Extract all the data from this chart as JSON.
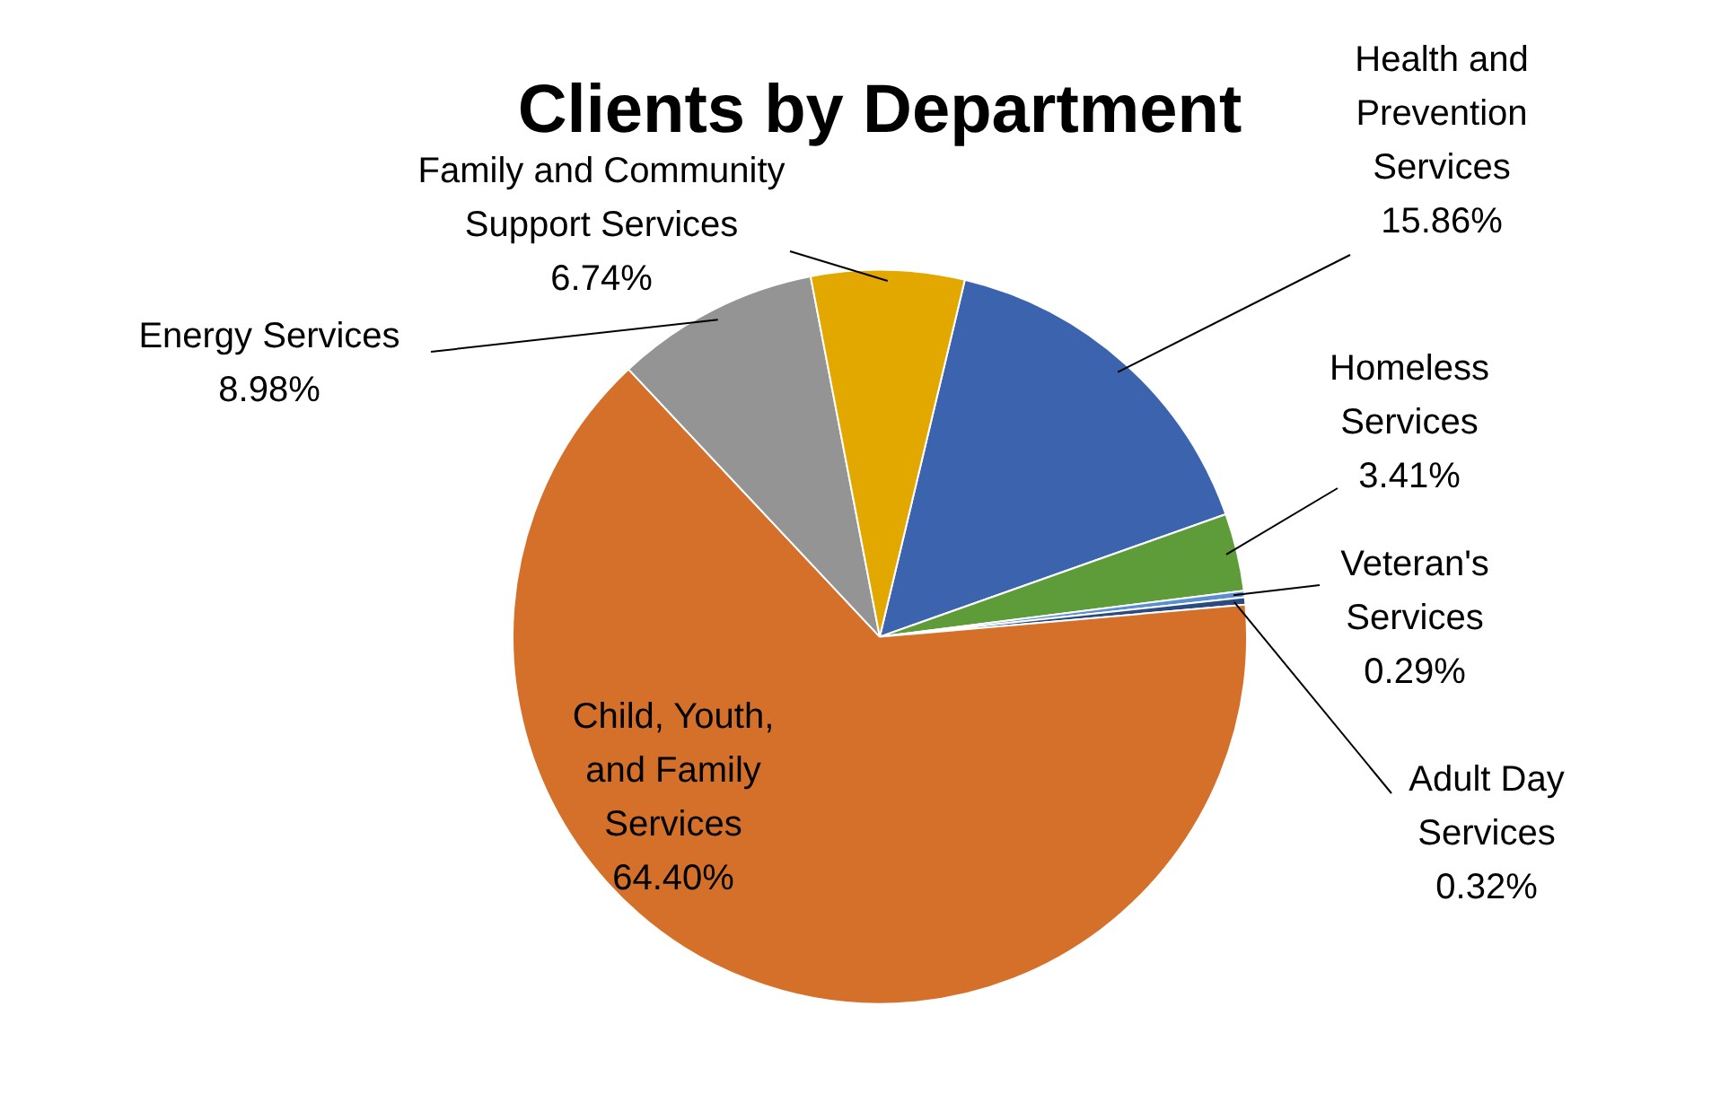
{
  "chart_data": {
    "type": "pie",
    "title": "Clients by Department",
    "categories": [
      "Health and Prevention Services",
      "Homeless Services",
      "Veteran's Services",
      "Adult Day Services",
      "Child, Youth, and Family Services",
      "Energy Services",
      "Family and Community Support Services"
    ],
    "values": [
      15.86,
      3.41,
      0.29,
      0.32,
      64.4,
      8.98,
      6.74
    ],
    "colors": [
      "#3c64ae",
      "#5e9c3a",
      "#5a8fcf",
      "#2b4a80",
      "#d4702a",
      "#949494",
      "#e3a800"
    ],
    "value_labels": [
      "15.86%",
      "3.41%",
      "0.29%",
      "0.32%",
      "64.40%",
      "8.98%",
      "6.74%"
    ]
  }
}
